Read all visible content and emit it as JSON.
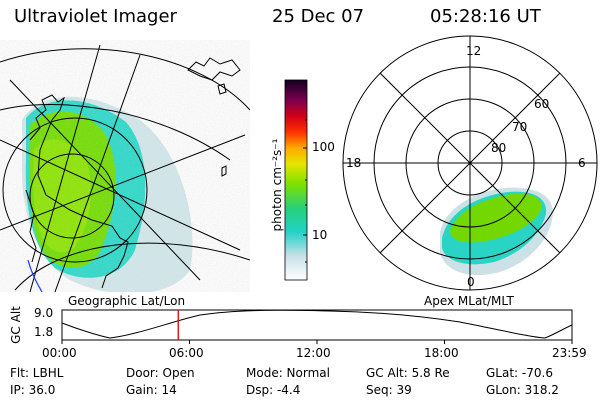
{
  "header": {
    "instrument": "Ultraviolet Imager",
    "date": "25 Dec 07",
    "time": "05:28:16 UT"
  },
  "colorbar": {
    "unit_label": "photon cm⁻²s⁻¹",
    "ticks": [
      "100",
      "10"
    ]
  },
  "geo_panel": {
    "caption": "Geographic Lat/Lon"
  },
  "apex_panel": {
    "caption": "Apex MLat/MLT",
    "mlt_labels": [
      "12",
      "18",
      "6",
      "0"
    ],
    "lat_labels": [
      "60",
      "70",
      "80"
    ]
  },
  "altitude_plot": {
    "ylabel": "GC Alt",
    "yticks": [
      "9.0",
      "1.8"
    ],
    "xticks": [
      "00:00",
      "06:00",
      "12:00",
      "18:00",
      "23:59"
    ],
    "marker_hour": 5.47
  },
  "info": {
    "flt": "Flt: LBHL",
    "ip": "IP: 36.0",
    "door": "Door: Open",
    "gain": "Gain: 14",
    "mode": "Mode: Normal",
    "dsp": "Dsp:    -4.4",
    "gc_alt": "GC Alt: 5.8 Re",
    "seq": "Seq: 39",
    "glat": "GLat: -70.6",
    "glon": "GLon: 318.2"
  }
}
